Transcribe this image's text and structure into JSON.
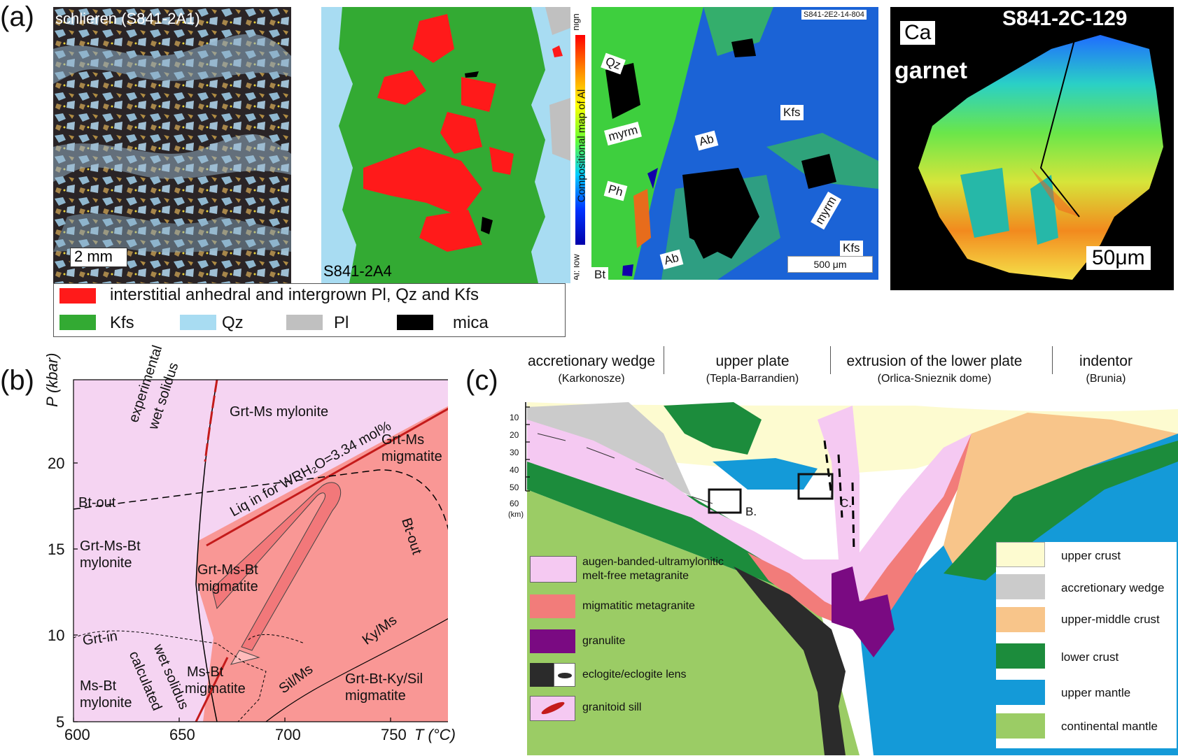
{
  "panel_labels": {
    "a": "(a)",
    "b": "(b)",
    "c": "(c)"
  },
  "panel_a": {
    "image1": {
      "label": "schlieren (S841-2A1)",
      "scale": "2 mm"
    },
    "image2": {
      "label": "S841-2A4"
    },
    "image3": {
      "code": "S841-2E2-14-804",
      "colorbar_title": "Compositional map of Al",
      "colorbar_high": "high",
      "colorbar_low": "Al: low",
      "scale": "500 μm",
      "labels": [
        "Qz",
        "myrm",
        "Ab",
        "Ph",
        "Bt",
        "Ab",
        "Kfs",
        "myrm",
        "Kfs"
      ]
    },
    "image4": {
      "element": "Ca",
      "mineral": "garnet",
      "code": "S841-2C-129",
      "scale": "50μm"
    },
    "legend": {
      "interstitial": "interstitial anhedral and intergrown Pl, Qz and Kfs",
      "kfs": "Kfs",
      "qz": "Qz",
      "pl": "Pl",
      "mica": "mica"
    },
    "colors": {
      "interstitial": "#ff1a1a",
      "kfs": "#33aa33",
      "qz": "#a8dcf2",
      "pl": "#c0c0c0",
      "mica": "#000000"
    }
  },
  "panel_b": {
    "ylabel": "P (kbar)",
    "xlabel": "T (°C)",
    "x_ticks": [
      "600",
      "650",
      "700",
      "750"
    ],
    "y_ticks": [
      "20",
      "15",
      "10",
      "5"
    ],
    "field_labels": {
      "grt_ms_mylonite": "Grt-Ms mylonite",
      "grt_ms_migmatite_1": "Grt-Ms",
      "grt_ms_migmatite_2": "migmatite",
      "grt_ms_bt_mylonite_1": "Grt-Ms-Bt",
      "grt_ms_bt_mylonite_2": "mylonite",
      "grt_ms_bt_migmatite_1": "Grt-Ms-Bt",
      "grt_ms_bt_migmatite_2": "migmatite",
      "ms_bt_migmatite_1": "Ms-Bt",
      "ms_bt_migmatite_2": "migmatite",
      "ms_bt_mylonite_1": "Ms-Bt",
      "ms_bt_mylonite_2": "mylonite",
      "grt_bt_ky_migmatite_1": "Grt-Bt-Ky/Sil",
      "grt_bt_ky_migmatite_2": "migmatite"
    },
    "line_labels": {
      "exp_wet_1": "experimental",
      "exp_wet_2": "wet solidus",
      "bt_out_left": "Bt-out",
      "bt_out_right": "Bt-out",
      "liq_in": "Liq in for WRH₂O=3.34 mol%",
      "grt_in": "Grt-in",
      "wet_calc_1": "wet solidus",
      "wet_calc_2": "calculated",
      "ky_ms": "Ky/Ms",
      "sil_ms": "Sil/Ms"
    },
    "colors": {
      "subsolidus": "#f5d4f2",
      "suprasolidus": "#f99795",
      "path": "#f2787a",
      "solidus": "#c41b1b"
    }
  },
  "panel_c": {
    "zones": [
      {
        "title": "accretionary wedge",
        "sub": "(Karkonosze)"
      },
      {
        "title": "upper plate",
        "sub": "(Tepla-Barrandien)"
      },
      {
        "title": "extrusion of the lower plate",
        "sub": "(Orlica-Snieznik dome)"
      },
      {
        "title": "indentor",
        "sub": "(Brunia)"
      }
    ],
    "depth_ticks": [
      "10",
      "20",
      "30",
      "40",
      "50",
      "60"
    ],
    "depth_unit": "(km)",
    "box_labels": {
      "b": "B.",
      "c": "C."
    },
    "legend_left": [
      {
        "label1": "augen-banded-ultramylonitic",
        "label2": "melt-free metagranite",
        "color": "#f5c9f2"
      },
      {
        "label1": "migmatitic metagranite",
        "label2": "",
        "color": "#f27c7a"
      },
      {
        "label1": "granulite",
        "label2": "",
        "color": "#7a0a82"
      },
      {
        "label1": "eclogite/eclogite lens",
        "label2": "",
        "color": "#2b2b2b"
      },
      {
        "label1": "granitoid sill",
        "label2": "",
        "color": "#f5c9f2"
      }
    ],
    "legend_right": [
      {
        "label": "upper crust",
        "color": "#fdfbd0"
      },
      {
        "label": "accretionary wedge",
        "color": "#cbcbcb"
      },
      {
        "label": "upper-middle crust",
        "color": "#f8c58a"
      },
      {
        "label": "lower crust",
        "color": "#1c8c3c"
      },
      {
        "label": "upper mantle",
        "color": "#149ad8"
      },
      {
        "label": "continental mantle",
        "color": "#9bcc65"
      }
    ]
  }
}
